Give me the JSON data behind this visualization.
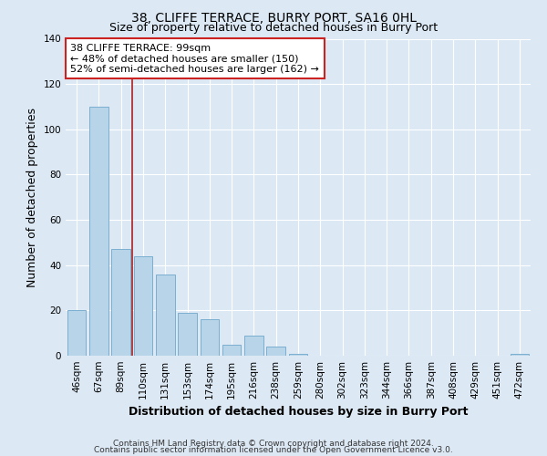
{
  "title": "38, CLIFFE TERRACE, BURRY PORT, SA16 0HL",
  "subtitle": "Size of property relative to detached houses in Burry Port",
  "xlabel": "Distribution of detached houses by size in Burry Port",
  "ylabel": "Number of detached properties",
  "bar_labels": [
    "46sqm",
    "67sqm",
    "89sqm",
    "110sqm",
    "131sqm",
    "153sqm",
    "174sqm",
    "195sqm",
    "216sqm",
    "238sqm",
    "259sqm",
    "280sqm",
    "302sqm",
    "323sqm",
    "344sqm",
    "366sqm",
    "387sqm",
    "408sqm",
    "429sqm",
    "451sqm",
    "472sqm"
  ],
  "bar_values": [
    20,
    110,
    47,
    44,
    36,
    19,
    16,
    5,
    9,
    4,
    1,
    0,
    0,
    0,
    0,
    0,
    0,
    0,
    0,
    0,
    1
  ],
  "bar_color": "#b8d4e8",
  "bar_edge_color": "#7aaed0",
  "vline_color": "#aa2222",
  "ylim": [
    0,
    140
  ],
  "yticks": [
    0,
    20,
    40,
    60,
    80,
    100,
    120,
    140
  ],
  "annotation_title": "38 CLIFFE TERRACE: 99sqm",
  "annotation_line1": "← 48% of detached houses are smaller (150)",
  "annotation_line2": "52% of semi-detached houses are larger (162) →",
  "annotation_box_facecolor": "#ffffff",
  "annotation_box_edge": "#cc2222",
  "footer1": "Contains HM Land Registry data © Crown copyright and database right 2024.",
  "footer2": "Contains public sector information licensed under the Open Government Licence v3.0.",
  "background_color": "#dce8f4",
  "plot_background": "#dce8f4",
  "grid_color": "#ffffff",
  "title_fontsize": 10,
  "subtitle_fontsize": 9,
  "axis_label_fontsize": 9,
  "tick_fontsize": 7.5,
  "annotation_fontsize": 8,
  "footer_fontsize": 6.5
}
